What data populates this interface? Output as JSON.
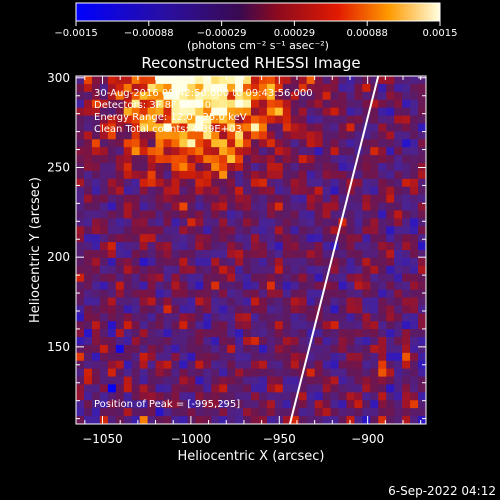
{
  "colorbar": {
    "ticks": [
      "−0.0015",
      "−0.00088",
      "−0.00029",
      "0.00029",
      "0.00088",
      "0.0015"
    ],
    "unit_label": "(photons cm⁻² s⁻¹ asec⁻²)",
    "range": [
      -0.0015,
      0.0015
    ]
  },
  "chart_data": {
    "type": "heatmap",
    "title": "Reconstructed RHESSI Image",
    "xlabel": "Heliocentric X (arcsec)",
    "ylabel": "Heliocentric Y (arcsec)",
    "xlim": [
      -1065,
      -867
    ],
    "ylim": [
      107,
      301
    ],
    "x_ticks": [
      -1050,
      -1000,
      -950,
      -900
    ],
    "y_ticks": [
      150,
      200,
      250,
      300
    ],
    "x_tick_labels": [
      "−1050",
      "−1000",
      "−950",
      "−900"
    ],
    "y_tick_labels": [
      "150",
      "200",
      "250",
      "300"
    ],
    "limb_line": {
      "from": [
        -944,
        107
      ],
      "to": [
        -894,
        301
      ]
    },
    "annotations": [
      "30-Aug-2016 09:42:56.000 to 09:43:56.000",
      "Detectors: 3F 8F 9F 8 0",
      "Energy Range: 12.0 - 25.0 keV",
      "Clean      Total counts: 4.39E+03"
    ],
    "peak_label": "Position of Peak = [-995,295]",
    "peak_position": [
      -995,
      295
    ]
  },
  "footer": {
    "timestamp": "6-Sep-2022 04:12"
  }
}
